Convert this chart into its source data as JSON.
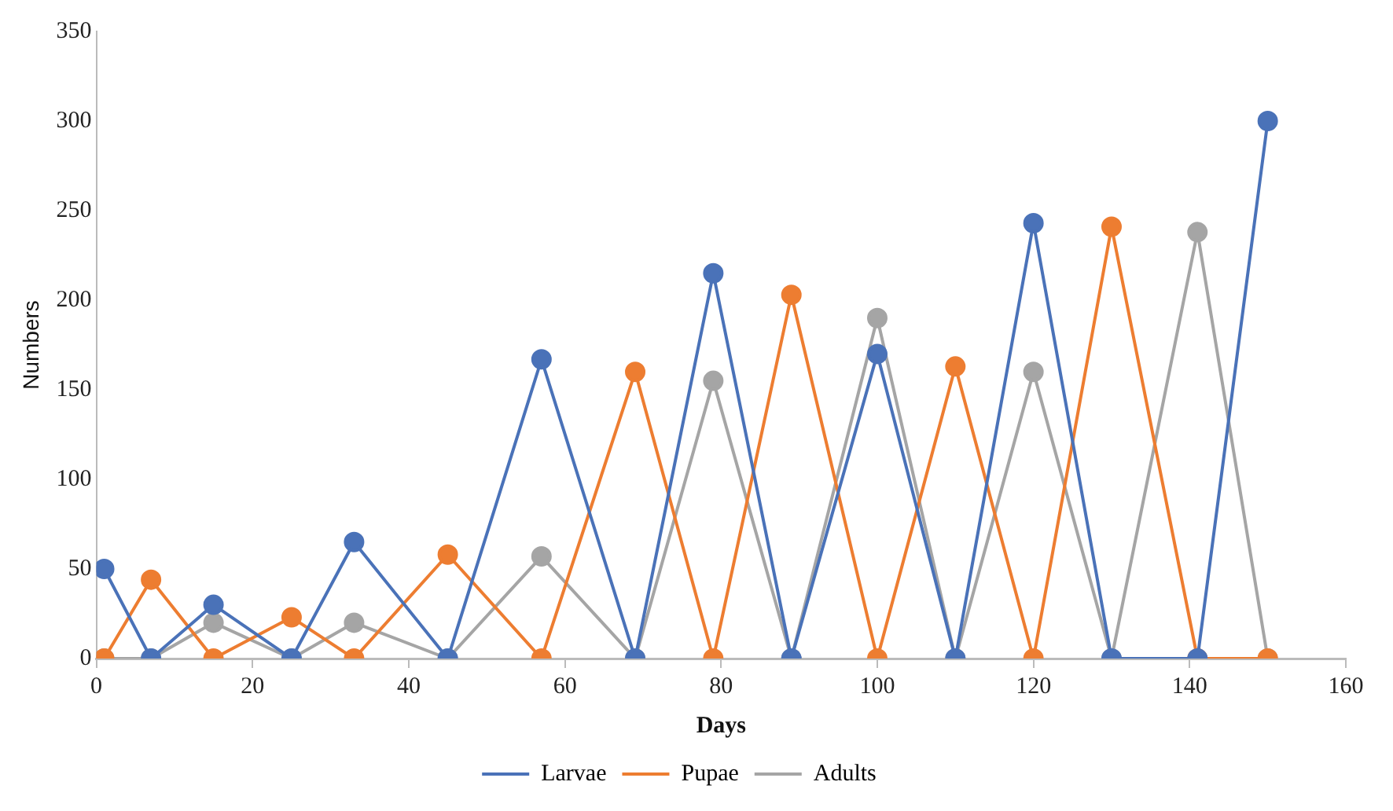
{
  "chart_data": {
    "type": "line",
    "xlabel": "Days",
    "ylabel": "Numbers",
    "x": [
      1,
      7,
      15,
      25,
      33,
      45,
      57,
      69,
      79,
      89,
      100,
      110,
      120,
      130,
      141,
      150
    ],
    "series": [
      {
        "name": "Larvae",
        "color": "#4a72b8",
        "values": [
          50,
          0,
          30,
          0,
          65,
          0,
          167,
          0,
          215,
          0,
          170,
          0,
          243,
          0,
          0,
          300
        ]
      },
      {
        "name": "Pupae",
        "color": "#ed7d31",
        "values": [
          0,
          44,
          0,
          23,
          0,
          58,
          0,
          160,
          0,
          203,
          0,
          163,
          0,
          241,
          0,
          0
        ]
      },
      {
        "name": "Adults",
        "color": "#a5a5a5",
        "values": [
          0,
          0,
          20,
          0,
          20,
          0,
          57,
          0,
          155,
          0,
          190,
          0,
          160,
          0,
          238,
          0
        ]
      }
    ],
    "xlim": [
      0,
      160
    ],
    "xticks": [
      0,
      20,
      40,
      60,
      80,
      100,
      120,
      140,
      160
    ],
    "ylim": [
      0,
      350
    ],
    "yticks": [
      0,
      50,
      100,
      150,
      200,
      250,
      300,
      350
    ],
    "grid": false,
    "legend": "bottom",
    "marker": "circle",
    "line_style": "solid"
  }
}
